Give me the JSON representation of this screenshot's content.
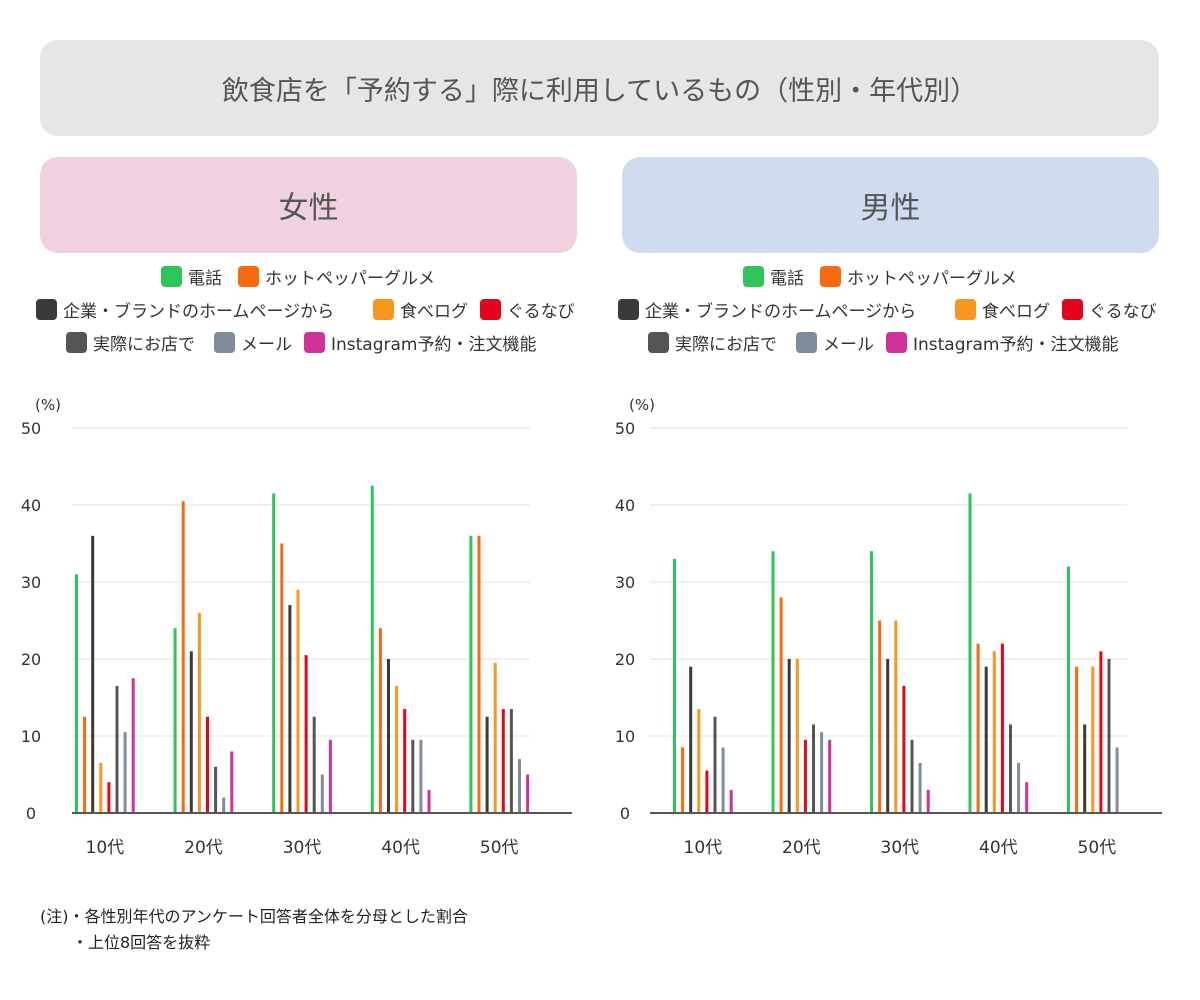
{
  "title": "飲食店を「予約する」際に利用しているもの（性別・年代別）",
  "colors": {
    "title_bg": "#e6e6e6",
    "female_bg": "#f1d0df",
    "male_bg": "#cfdcf0"
  },
  "legend": [
    {
      "label": "電話",
      "color": "#2ec55a"
    },
    {
      "label": "ホットペッパーグルメ",
      "color": "#f86a0f"
    },
    {
      "label": "企業・ブランドのホームページから",
      "color": "#3a3a3a"
    },
    {
      "label": "食べログ",
      "color": "#f8971f"
    },
    {
      "label": "ぐるなび",
      "color": "#e3051b"
    },
    {
      "label": "実際にお店で",
      "color": "#555555"
    },
    {
      "label": "メール",
      "color": "#7f8c9b"
    },
    {
      "label": "Instagram予約・注文機能",
      "color": "#d1319a"
    }
  ],
  "notes": {
    "line1": "(注)・各性別年代のアンケート回答者全体を分母とした割合",
    "line2": "・上位8回答を抜粋"
  },
  "chart_data": [
    {
      "type": "bar",
      "title": "女性",
      "ylabel": "(%)",
      "ylim": [
        0,
        50
      ],
      "yticks": [
        0,
        10,
        20,
        30,
        40,
        50
      ],
      "grid": true,
      "legend_position": "top",
      "categories": [
        "10代",
        "20代",
        "30代",
        "40代",
        "50代"
      ],
      "series": [
        {
          "name": "電話",
          "values": [
            31,
            24,
            41.5,
            42.5,
            36
          ]
        },
        {
          "name": "ホットペッパーグルメ",
          "values": [
            12.5,
            40.5,
            35,
            24,
            36
          ]
        },
        {
          "name": "企業・ブランドのホームページから",
          "values": [
            36,
            21,
            27,
            20,
            12.5
          ]
        },
        {
          "name": "食べログ",
          "values": [
            6.5,
            26,
            29,
            16.5,
            19.5
          ]
        },
        {
          "name": "ぐるなび",
          "values": [
            4,
            12.5,
            20.5,
            13.5,
            13.5
          ]
        },
        {
          "name": "実際にお店で",
          "values": [
            16.5,
            6,
            12.5,
            9.5,
            13.5
          ]
        },
        {
          "name": "メール",
          "values": [
            10.5,
            2,
            5,
            9.5,
            7
          ]
        },
        {
          "name": "Instagram予約・注文機能",
          "values": [
            17.5,
            8,
            9.5,
            3,
            5
          ]
        }
      ]
    },
    {
      "type": "bar",
      "title": "男性",
      "ylabel": "(%)",
      "ylim": [
        0,
        50
      ],
      "yticks": [
        0,
        10,
        20,
        30,
        40,
        50
      ],
      "grid": true,
      "legend_position": "top",
      "categories": [
        "10代",
        "20代",
        "30代",
        "40代",
        "50代"
      ],
      "series": [
        {
          "name": "電話",
          "values": [
            33,
            34,
            34,
            41.5,
            32
          ]
        },
        {
          "name": "ホットペッパーグルメ",
          "values": [
            8.5,
            28,
            25,
            22,
            19
          ]
        },
        {
          "name": "企業・ブランドのホームページから",
          "values": [
            19,
            20,
            20,
            19,
            11.5
          ]
        },
        {
          "name": "食べログ",
          "values": [
            13.5,
            20,
            25,
            21,
            19
          ]
        },
        {
          "name": "ぐるなび",
          "values": [
            5.5,
            9.5,
            16.5,
            22,
            21
          ]
        },
        {
          "name": "実際にお店で",
          "values": [
            12.5,
            11.5,
            9.5,
            11.5,
            20
          ]
        },
        {
          "name": "メール",
          "values": [
            8.5,
            10.5,
            6.5,
            6.5,
            8.5
          ]
        },
        {
          "name": "Instagram予約・注文機能",
          "values": [
            3,
            9.5,
            3,
            4,
            0
          ]
        }
      ]
    }
  ]
}
